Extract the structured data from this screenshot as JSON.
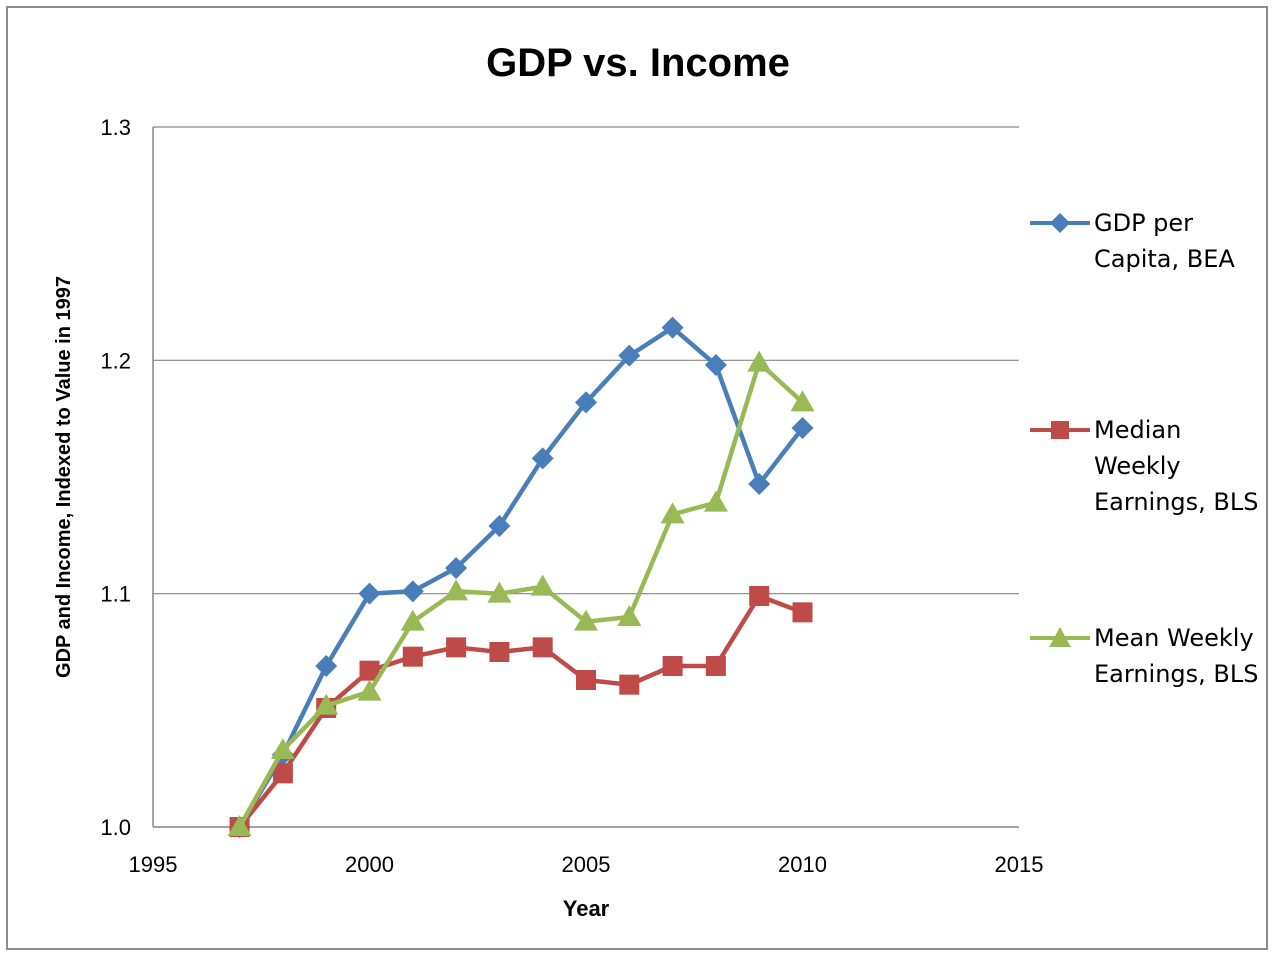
{
  "chart_data": {
    "type": "line",
    "title": "GDP vs. Income",
    "xlabel": "Year",
    "ylabel": "GDP and Income, Indexed to Value in 1997",
    "xlim": [
      1995,
      2015
    ],
    "ylim": [
      1.0,
      1.3
    ],
    "xticks": [
      "1995",
      "2000",
      "2005",
      "2010",
      "2015"
    ],
    "yticks": [
      "1.0",
      "1.1",
      "1.2",
      "1.3"
    ],
    "grid": "horizontal",
    "legend_position": "right",
    "series": [
      {
        "name": "GDP per Capita, BEA",
        "color": "#4a7ebb",
        "marker": "diamond",
        "x": [
          1997,
          1998,
          1999,
          2000,
          2001,
          2002,
          2003,
          2004,
          2005,
          2006,
          2007,
          2008,
          2009,
          2010
        ],
        "values": [
          1.0,
          1.031,
          1.069,
          1.1,
          1.101,
          1.111,
          1.129,
          1.158,
          1.182,
          1.202,
          1.214,
          1.198,
          1.147,
          1.171
        ]
      },
      {
        "name": "Median Weekly Earnings, BLS",
        "color": "#be4b48",
        "marker": "square",
        "x": [
          1997,
          1998,
          1999,
          2000,
          2001,
          2002,
          2003,
          2004,
          2005,
          2006,
          2007,
          2008,
          2009,
          2010
        ],
        "values": [
          1.0,
          1.023,
          1.051,
          1.067,
          1.073,
          1.077,
          1.075,
          1.077,
          1.063,
          1.061,
          1.069,
          1.069,
          1.099,
          1.092
        ]
      },
      {
        "name": "Mean Weekly Earnings, BLS",
        "color": "#98b954",
        "marker": "triangle",
        "x": [
          1997,
          1998,
          1999,
          2000,
          2001,
          2002,
          2003,
          2004,
          2005,
          2006,
          2007,
          2008,
          2009,
          2010
        ],
        "values": [
          1.0,
          1.033,
          1.052,
          1.058,
          1.088,
          1.101,
          1.1,
          1.103,
          1.088,
          1.09,
          1.134,
          1.139,
          1.199,
          1.182
        ]
      }
    ]
  }
}
